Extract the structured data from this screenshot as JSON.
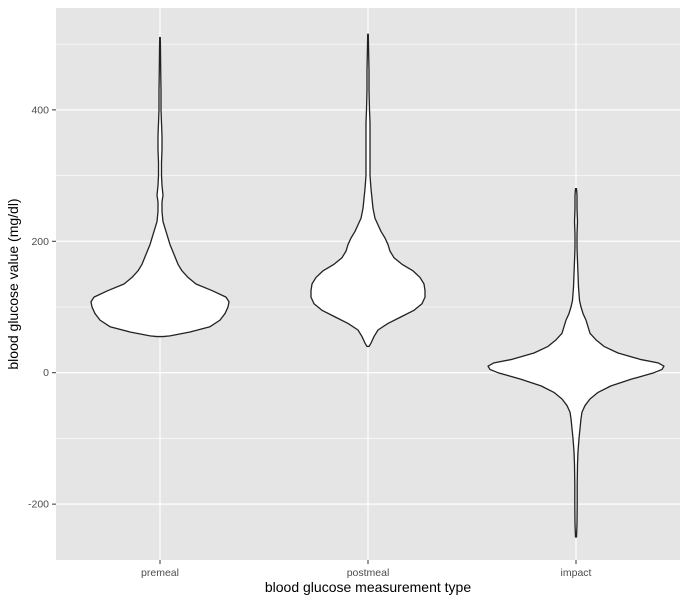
{
  "chart_data": {
    "type": "violin",
    "title": "",
    "xlabel": "blood glucose measurement type",
    "ylabel": "blood glucose value (mg/dl)",
    "categories": [
      "premeal",
      "postmeal",
      "impact"
    ],
    "ylim": [
      -285,
      555
    ],
    "yticks": [
      -200,
      0,
      200,
      400
    ],
    "grid": true,
    "colors": {
      "panel": "#e5e5e5",
      "grid": "#ffffff",
      "violin_fill": "#ffffff",
      "violin_stroke": "#222222"
    },
    "series": [
      {
        "category": "premeal",
        "min": 55,
        "max": 510,
        "profile": [
          [
            55,
            3
          ],
          [
            56,
            10
          ],
          [
            62,
            30
          ],
          [
            70,
            50
          ],
          [
            80,
            60
          ],
          [
            90,
            65
          ],
          [
            100,
            68
          ],
          [
            108,
            69
          ],
          [
            115,
            66
          ],
          [
            125,
            52
          ],
          [
            135,
            36
          ],
          [
            145,
            28
          ],
          [
            155,
            22
          ],
          [
            165,
            18
          ],
          [
            180,
            14
          ],
          [
            195,
            10
          ],
          [
            210,
            7
          ],
          [
            220,
            5
          ],
          [
            230,
            3
          ],
          [
            245,
            2
          ],
          [
            260,
            2
          ],
          [
            270,
            3
          ],
          [
            285,
            2
          ],
          [
            300,
            1.5
          ],
          [
            320,
            1.5
          ],
          [
            340,
            2
          ],
          [
            360,
            2
          ],
          [
            380,
            1.5
          ],
          [
            400,
            1
          ],
          [
            430,
            1
          ],
          [
            460,
            0.7
          ],
          [
            490,
            0.5
          ],
          [
            510,
            0.3
          ]
        ]
      },
      {
        "category": "postmeal",
        "min": 40,
        "max": 515,
        "profile": [
          [
            40,
            1
          ],
          [
            45,
            3
          ],
          [
            55,
            6
          ],
          [
            65,
            10
          ],
          [
            75,
            20
          ],
          [
            85,
            33
          ],
          [
            95,
            46
          ],
          [
            105,
            54
          ],
          [
            115,
            57
          ],
          [
            125,
            57
          ],
          [
            135,
            56
          ],
          [
            145,
            52
          ],
          [
            155,
            45
          ],
          [
            165,
            34
          ],
          [
            175,
            26
          ],
          [
            185,
            22
          ],
          [
            195,
            20
          ],
          [
            205,
            17
          ],
          [
            215,
            13
          ],
          [
            225,
            10
          ],
          [
            235,
            7
          ],
          [
            250,
            5
          ],
          [
            265,
            4
          ],
          [
            280,
            3
          ],
          [
            300,
            2
          ],
          [
            320,
            2
          ],
          [
            340,
            2
          ],
          [
            360,
            2
          ],
          [
            380,
            2
          ],
          [
            400,
            1.5
          ],
          [
            430,
            1
          ],
          [
            460,
            1
          ],
          [
            490,
            0.6
          ],
          [
            515,
            0.3
          ]
        ]
      },
      {
        "category": "impact",
        "min": -250,
        "max": 280,
        "profile": [
          [
            -250,
            0.5
          ],
          [
            -230,
            1
          ],
          [
            -200,
            1.2
          ],
          [
            -170,
            1.2
          ],
          [
            -140,
            1.5
          ],
          [
            -120,
            2
          ],
          [
            -100,
            3
          ],
          [
            -85,
            4
          ],
          [
            -70,
            5
          ],
          [
            -60,
            6
          ],
          [
            -50,
            9
          ],
          [
            -40,
            14
          ],
          [
            -30,
            22
          ],
          [
            -20,
            35
          ],
          [
            -10,
            55
          ],
          [
            0,
            78
          ],
          [
            5,
            86
          ],
          [
            10,
            88
          ],
          [
            15,
            82
          ],
          [
            20,
            65
          ],
          [
            30,
            42
          ],
          [
            40,
            28
          ],
          [
            50,
            20
          ],
          [
            60,
            14
          ],
          [
            70,
            12
          ],
          [
            80,
            10
          ],
          [
            90,
            7
          ],
          [
            100,
            5
          ],
          [
            110,
            3.5
          ],
          [
            120,
            3
          ],
          [
            130,
            2.5
          ],
          [
            150,
            2
          ],
          [
            170,
            1.5
          ],
          [
            190,
            1
          ],
          [
            210,
            1
          ],
          [
            230,
            1.5
          ],
          [
            250,
            1
          ],
          [
            270,
            1
          ],
          [
            280,
            0.5
          ]
        ]
      }
    ]
  }
}
